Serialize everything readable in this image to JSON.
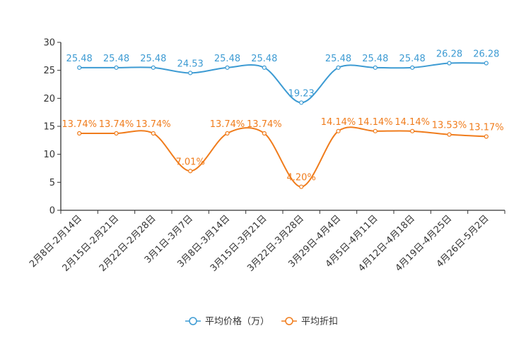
{
  "chart_data": {
    "type": "line",
    "title": "",
    "xlabel": "",
    "ylabel": "",
    "ylim": [
      0,
      30
    ],
    "yticks": [
      "0",
      "5",
      "10",
      "15",
      "20",
      "25",
      "30"
    ],
    "categories": [
      "2月8日-2月14日",
      "2月15日-2月21日",
      "2月22日-2月28日",
      "3月1日-3月7日",
      "3月8日-3月14日",
      "3月15日-3月21日",
      "3月22日-3月28日",
      "3月29日-4月4日",
      "4月5日-4月11日",
      "4月12日-4月18日",
      "4月19日-4月25日",
      "4月26日-5月2日"
    ],
    "series": [
      {
        "name": "平均价格（万）",
        "color": "#3d9bd3",
        "values": [
          25.48,
          25.48,
          25.48,
          24.53,
          25.48,
          25.48,
          19.23,
          25.48,
          25.48,
          25.48,
          26.28,
          26.28
        ],
        "labels": [
          "25.48",
          "25.48",
          "25.48",
          "24.53",
          "25.48",
          "25.48",
          "19.23",
          "25.48",
          "25.48",
          "25.48",
          "26.28",
          "26.28"
        ]
      },
      {
        "name": "平均折扣",
        "color": "#f07c1c",
        "values": [
          13.74,
          13.74,
          13.74,
          7.01,
          13.74,
          13.74,
          4.2,
          14.14,
          14.14,
          14.14,
          13.53,
          13.17
        ],
        "labels": [
          "13.74%",
          "13.74%",
          "13.74%",
          "7.01%",
          "13.74%",
          "13.74%",
          "4.20%",
          "14.14%",
          "14.14%",
          "14.14%",
          "13.53%",
          "13.17%"
        ]
      }
    ],
    "grid": false,
    "legend": "bottom-center"
  }
}
